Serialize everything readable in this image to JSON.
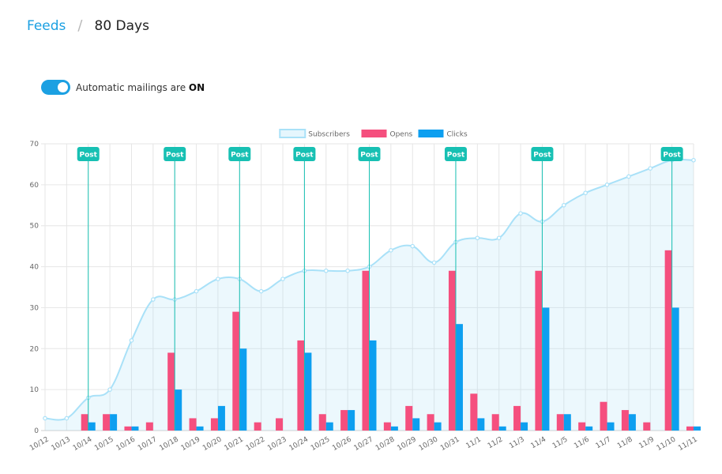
{
  "breadcrumb": {
    "parent": "Feeds",
    "separator": "/",
    "current": "80 Days"
  },
  "automation": {
    "prefix": "Automatic mailings are ",
    "state": "ON",
    "enabled": true
  },
  "colors": {
    "subscribers": "#a9e1f8",
    "opens": "#f54f7e",
    "clicks": "#0d9ff0",
    "post": "#17c0b3",
    "accent": "#1ba0e2"
  },
  "chart_data": {
    "type": "bar",
    "categories": [
      "10/12",
      "10/13",
      "10/14",
      "10/15",
      "10/16",
      "10/17",
      "10/18",
      "10/19",
      "10/20",
      "10/21",
      "10/22",
      "10/23",
      "10/24",
      "10/25",
      "10/26",
      "10/27",
      "10/28",
      "10/29",
      "10/30",
      "10/31",
      "11/1",
      "11/2",
      "11/3",
      "11/4",
      "11/5",
      "11/6",
      "11/7",
      "11/8",
      "11/9",
      "11/10",
      "11/11"
    ],
    "series": [
      {
        "name": "Subscribers",
        "type": "area",
        "values": [
          3,
          3,
          8,
          10,
          22,
          32,
          32,
          34,
          37,
          37,
          34,
          37,
          39,
          39,
          39,
          40,
          44,
          45,
          41,
          46,
          47,
          47,
          53,
          51,
          55,
          58,
          60,
          62,
          64,
          66,
          66
        ]
      },
      {
        "name": "Opens",
        "type": "bar",
        "values": [
          0,
          0,
          4,
          4,
          1,
          2,
          19,
          3,
          3,
          29,
          2,
          3,
          22,
          4,
          5,
          39,
          2,
          6,
          4,
          39,
          9,
          4,
          6,
          39,
          4,
          2,
          7,
          5,
          2,
          44,
          1
        ]
      },
      {
        "name": "Clicks",
        "type": "bar",
        "values": [
          0,
          0,
          2,
          4,
          1,
          0,
          10,
          1,
          6,
          20,
          0,
          0,
          19,
          2,
          5,
          22,
          1,
          3,
          2,
          26,
          3,
          1,
          2,
          30,
          4,
          1,
          2,
          4,
          0,
          30,
          1
        ]
      }
    ],
    "annotations": [
      {
        "label": "Post",
        "x": "10/14"
      },
      {
        "label": "Post",
        "x": "10/18"
      },
      {
        "label": "Post",
        "x": "10/21"
      },
      {
        "label": "Post",
        "x": "10/24"
      },
      {
        "label": "Post",
        "x": "10/27"
      },
      {
        "label": "Post",
        "x": "10/31"
      },
      {
        "label": "Post",
        "x": "11/4"
      },
      {
        "label": "Post",
        "x": "11/10"
      }
    ],
    "ylim": [
      0,
      70
    ],
    "yticks": [
      0,
      10,
      20,
      30,
      40,
      50,
      60,
      70
    ],
    "grid": true,
    "legend": "top-center"
  }
}
